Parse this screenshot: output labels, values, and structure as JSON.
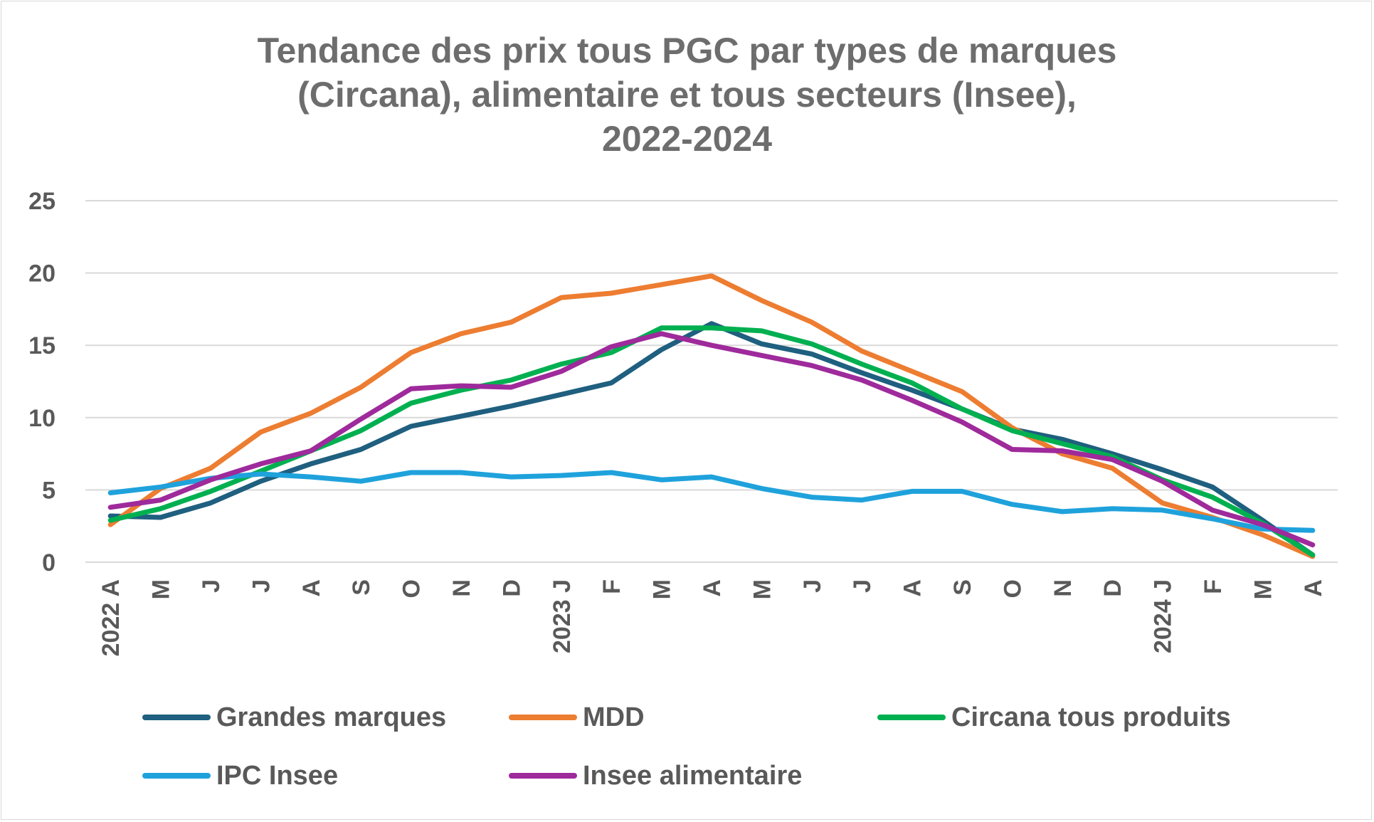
{
  "chart_data": {
    "type": "line",
    "title_lines": [
      "Tendance des prix tous PGC par types de marques",
      "(Circana), alimentaire et tous secteurs (Insee),",
      "2022-2024"
    ],
    "categories": [
      "2022 A",
      "M",
      "J",
      "J",
      "A",
      "S",
      "O",
      "N",
      "D",
      "2023 J",
      "F",
      "M",
      "A",
      "M",
      "J",
      "J",
      "A",
      "S",
      "O",
      "N",
      "D",
      "2024 J",
      "F",
      "M",
      "A"
    ],
    "ylim": [
      0,
      25
    ],
    "yticks": [
      "0",
      "5",
      "10",
      "15",
      "20",
      "25"
    ],
    "grid": true,
    "legend_position": "bottom",
    "series": [
      {
        "name": "Grandes marques",
        "color": "#1f5f7f",
        "values": [
          3.2,
          3.1,
          4.1,
          5.6,
          6.8,
          7.8,
          9.4,
          10.1,
          10.8,
          11.6,
          12.4,
          14.7,
          16.5,
          15.1,
          14.4,
          13.1,
          11.9,
          10.6,
          9.2,
          8.5,
          7.5,
          6.4,
          5.2,
          2.9,
          0.5
        ]
      },
      {
        "name": "MDD",
        "color": "#ed7d31",
        "values": [
          2.6,
          5.1,
          6.5,
          9.0,
          10.3,
          12.1,
          14.5,
          15.8,
          16.6,
          18.3,
          18.6,
          19.2,
          19.8,
          18.1,
          16.6,
          14.6,
          13.2,
          11.8,
          9.3,
          7.5,
          6.5,
          4.1,
          3.1,
          1.9,
          0.4
        ]
      },
      {
        "name": "Circana tous produits",
        "color": "#00b050",
        "values": [
          2.9,
          3.7,
          4.9,
          6.3,
          7.7,
          9.1,
          11.0,
          11.9,
          12.6,
          13.7,
          14.5,
          16.2,
          16.2,
          16.0,
          15.1,
          13.7,
          12.4,
          10.6,
          9.1,
          8.2,
          7.3,
          5.7,
          4.5,
          2.7,
          0.5
        ]
      },
      {
        "name": "IPC Insee",
        "color": "#1fa2dc",
        "values": [
          4.8,
          5.2,
          5.8,
          6.1,
          5.9,
          5.6,
          6.2,
          6.2,
          5.9,
          6.0,
          6.2,
          5.7,
          5.9,
          5.1,
          4.5,
          4.3,
          4.9,
          4.9,
          4.0,
          3.5,
          3.7,
          3.6,
          3.0,
          2.3,
          2.2
        ]
      },
      {
        "name": "Insee alimentaire",
        "color": "#9e2a9b",
        "values": [
          3.8,
          4.3,
          5.7,
          6.8,
          7.7,
          9.9,
          12.0,
          12.2,
          12.1,
          13.2,
          14.9,
          15.8,
          15.0,
          14.3,
          13.6,
          12.6,
          11.2,
          9.7,
          7.8,
          7.7,
          7.1,
          5.6,
          3.6,
          2.6,
          1.2
        ]
      }
    ]
  }
}
